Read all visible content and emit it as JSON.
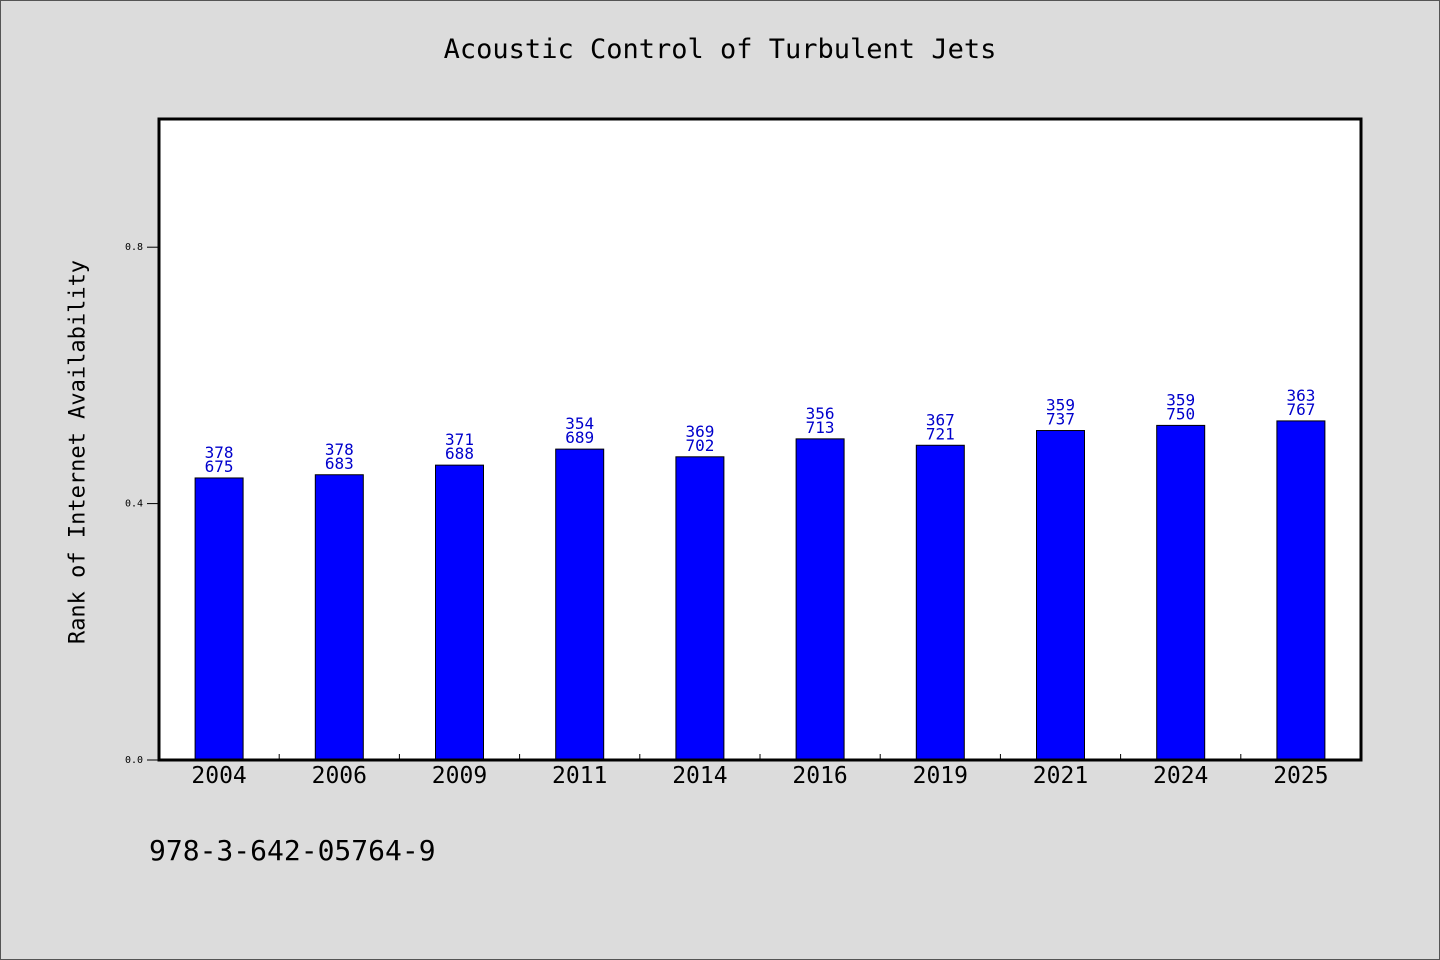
{
  "chart_data": {
    "type": "bar",
    "title": "Acoustic Control of Turbulent Jets",
    "ylabel": "Rank of Internet Availability",
    "xlabel": "",
    "categories": [
      "2004",
      "2006",
      "2009",
      "2011",
      "2014",
      "2016",
      "2019",
      "2021",
      "2024",
      "2025"
    ],
    "values": [
      0.44,
      0.445,
      0.46,
      0.485,
      0.473,
      0.501,
      0.491,
      0.514,
      0.522,
      0.529
    ],
    "bar_labels_top": [
      "378",
      "378",
      "371",
      "354",
      "369",
      "356",
      "367",
      "359",
      "359",
      "363"
    ],
    "bar_labels_bottom": [
      "675",
      "683",
      "688",
      "689",
      "702",
      "713",
      "721",
      "737",
      "750",
      "767"
    ],
    "ylim": [
      0.0,
      1.0
    ],
    "yticks": [
      "0.0",
      "0.4",
      "0.8"
    ],
    "grid": false,
    "bar_color": "#0000ff",
    "label_color": "#0000cc"
  },
  "footer": {
    "code": "978-3-642-05764-9"
  }
}
